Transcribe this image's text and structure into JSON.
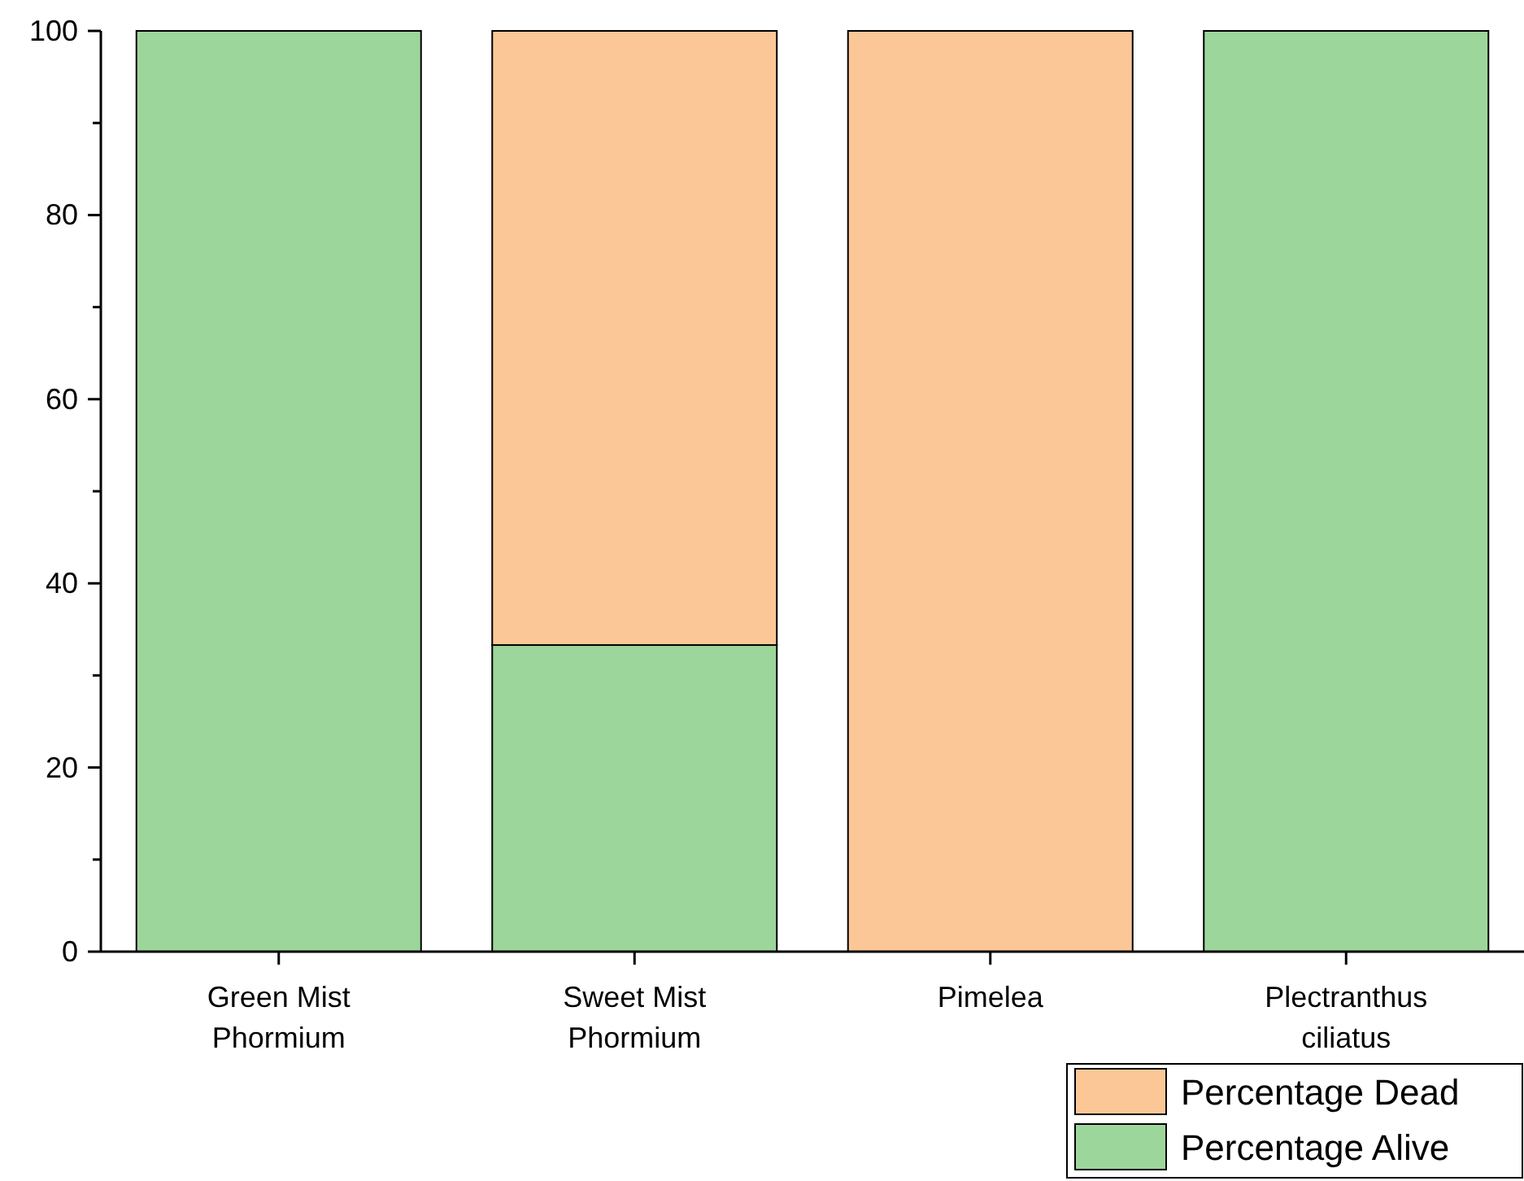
{
  "chart_data": {
    "type": "bar",
    "stacked": true,
    "categories": [
      "Green Mist\nPhormium",
      "Sweet Mist\nPhormium",
      "Pimelea",
      "Plectranthus\nciliatus"
    ],
    "series": [
      {
        "name": "Percentage Alive",
        "color": "#9dd69b",
        "values": [
          100,
          33.3,
          0,
          100
        ]
      },
      {
        "name": "Percentage Dead",
        "color": "#fbc797",
        "values": [
          0,
          66.7,
          100,
          0
        ]
      }
    ],
    "ylim": [
      0,
      100
    ],
    "yticks": [
      0,
      {
        "value": 10,
        "label": null
      },
      20,
      {
        "value": 30,
        "label": null
      },
      40,
      {
        "value": 50,
        "label": null
      },
      60,
      {
        "value": 70,
        "label": null
      },
      80,
      {
        "value": 90,
        "label": null
      },
      100
    ],
    "grid": false,
    "legend": "bottom right"
  }
}
